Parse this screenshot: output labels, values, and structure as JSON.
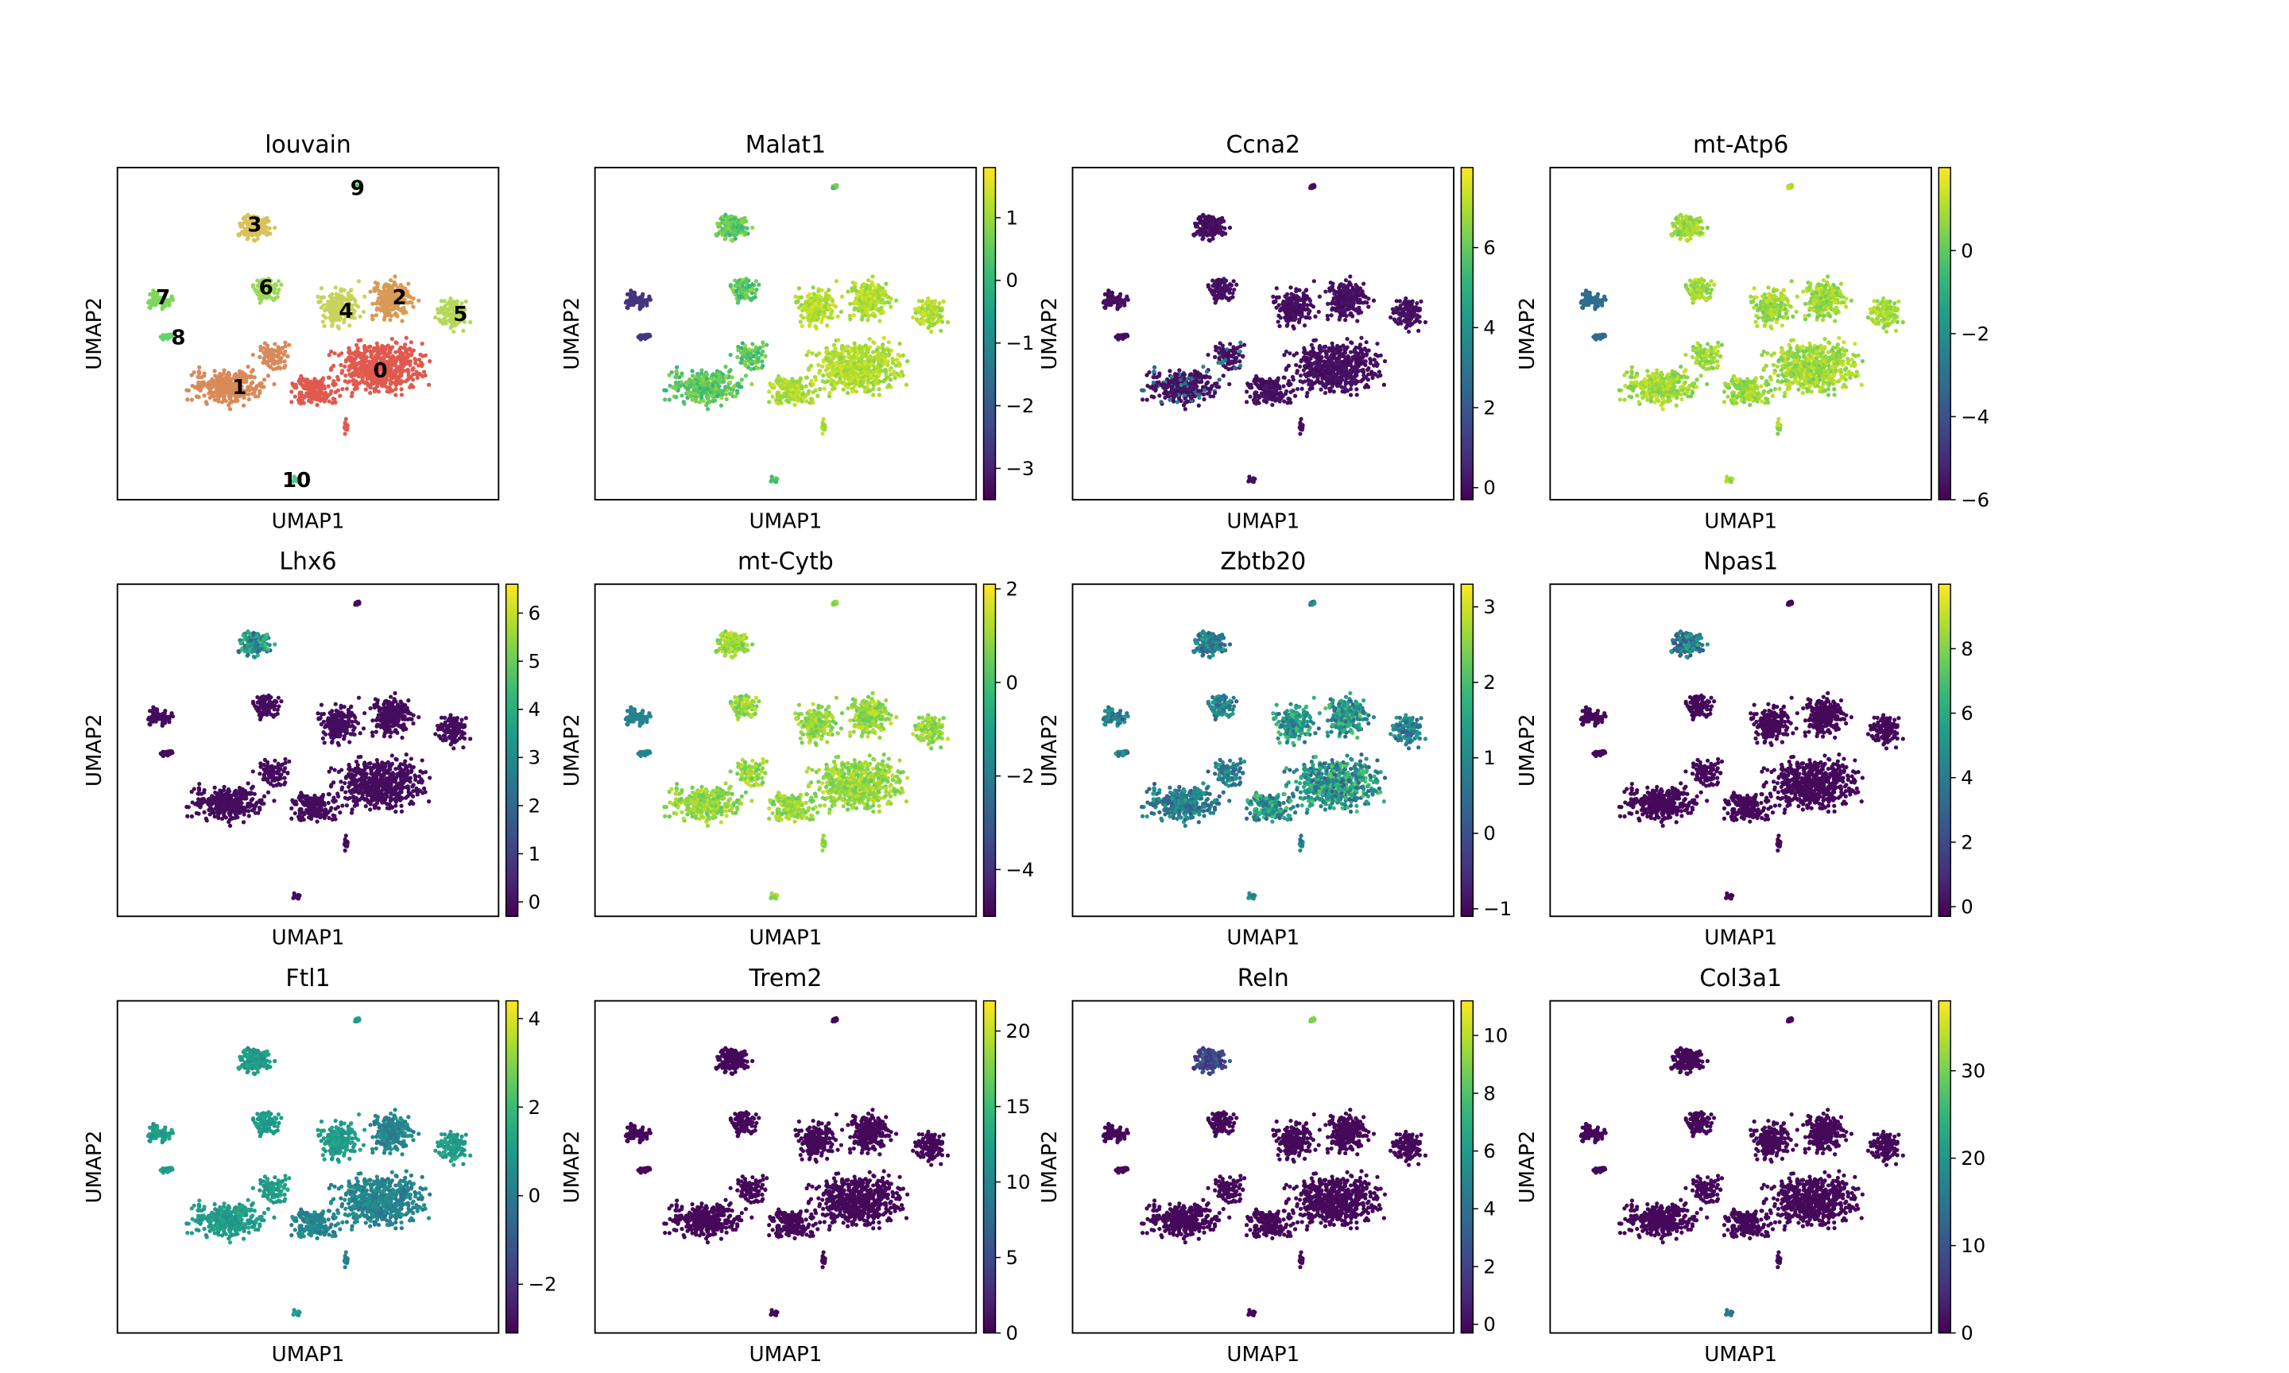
{
  "chart_data": {
    "type": "scatter",
    "layout": "grid 3x4 (UMAP embedding panels)",
    "colormap": "viridis",
    "xlabel": "UMAP1",
    "ylabel": "UMAP2",
    "panels": [
      {
        "title": "louvain",
        "categorical": true,
        "clusters": [
          {
            "label": "0",
            "color": "#e05a4f"
          },
          {
            "label": "1",
            "color": "#d98a59"
          },
          {
            "label": "2",
            "color": "#d89b55"
          },
          {
            "label": "3",
            "color": "#d8c25c"
          },
          {
            "label": "4",
            "color": "#c9d35b"
          },
          {
            "label": "5",
            "color": "#b5d858"
          },
          {
            "label": "6",
            "color": "#9ed85a"
          },
          {
            "label": "7",
            "color": "#7fd65a"
          },
          {
            "label": "8",
            "color": "#63d46a"
          },
          {
            "label": "9",
            "color": "#52cf7c"
          },
          {
            "label": "10",
            "color": "#4dcb94"
          }
        ]
      },
      {
        "title": "Malat1",
        "range": [
          -3.5,
          1.8
        ],
        "ticks": [
          1,
          0,
          -1,
          -2,
          -3
        ],
        "tick_labels": [
          "1",
          "0",
          "−1",
          "−2",
          "−3"
        ]
      },
      {
        "title": "Ccna2",
        "range": [
          -0.3,
          8
        ],
        "ticks": [
          6,
          4,
          2,
          0
        ],
        "tick_labels": [
          "6",
          "4",
          "2",
          "0"
        ]
      },
      {
        "title": "mt-Atp6",
        "range": [
          -6,
          2
        ],
        "ticks": [
          0,
          -2,
          -4,
          -6
        ],
        "tick_labels": [
          "0",
          "−2",
          "−4",
          "−6"
        ]
      },
      {
        "title": "Lhx6",
        "range": [
          -0.3,
          6.6
        ],
        "ticks": [
          6,
          5,
          4,
          3,
          2,
          1,
          0
        ],
        "tick_labels": [
          "6",
          "5",
          "4",
          "3",
          "2",
          "1",
          "0"
        ]
      },
      {
        "title": "mt-Cytb",
        "range": [
          -5,
          2.1
        ],
        "ticks": [
          2,
          0,
          -2,
          -4
        ],
        "tick_labels": [
          "2",
          "0",
          "−2",
          "−4"
        ]
      },
      {
        "title": "Zbtb20",
        "range": [
          -1.1,
          3.3
        ],
        "ticks": [
          3,
          2,
          1,
          0,
          -1
        ],
        "tick_labels": [
          "3",
          "2",
          "1",
          "0",
          "−1"
        ]
      },
      {
        "title": "Npas1",
        "range": [
          -0.3,
          10
        ],
        "ticks": [
          8,
          6,
          4,
          2,
          0
        ],
        "tick_labels": [
          "8",
          "6",
          "4",
          "2",
          "0"
        ]
      },
      {
        "title": "Ftl1",
        "range": [
          -3.1,
          4.4
        ],
        "ticks": [
          4,
          2,
          0,
          -2
        ],
        "tick_labels": [
          "4",
          "2",
          "0",
          "−2"
        ]
      },
      {
        "title": "Trem2",
        "range": [
          0,
          22
        ],
        "ticks": [
          20,
          15,
          10,
          5,
          0
        ],
        "tick_labels": [
          "20",
          "15",
          "10",
          "5",
          "0"
        ]
      },
      {
        "title": "Reln",
        "range": [
          -0.3,
          11.2
        ],
        "ticks": [
          10,
          8,
          6,
          4,
          2,
          0
        ],
        "tick_labels": [
          "10",
          "8",
          "6",
          "4",
          "2",
          "0"
        ]
      },
      {
        "title": "Col3a1",
        "range": [
          0,
          38
        ],
        "ticks": [
          30,
          20,
          10,
          0
        ],
        "tick_labels": [
          "30",
          "20",
          "10",
          "0"
        ]
      }
    ]
  }
}
